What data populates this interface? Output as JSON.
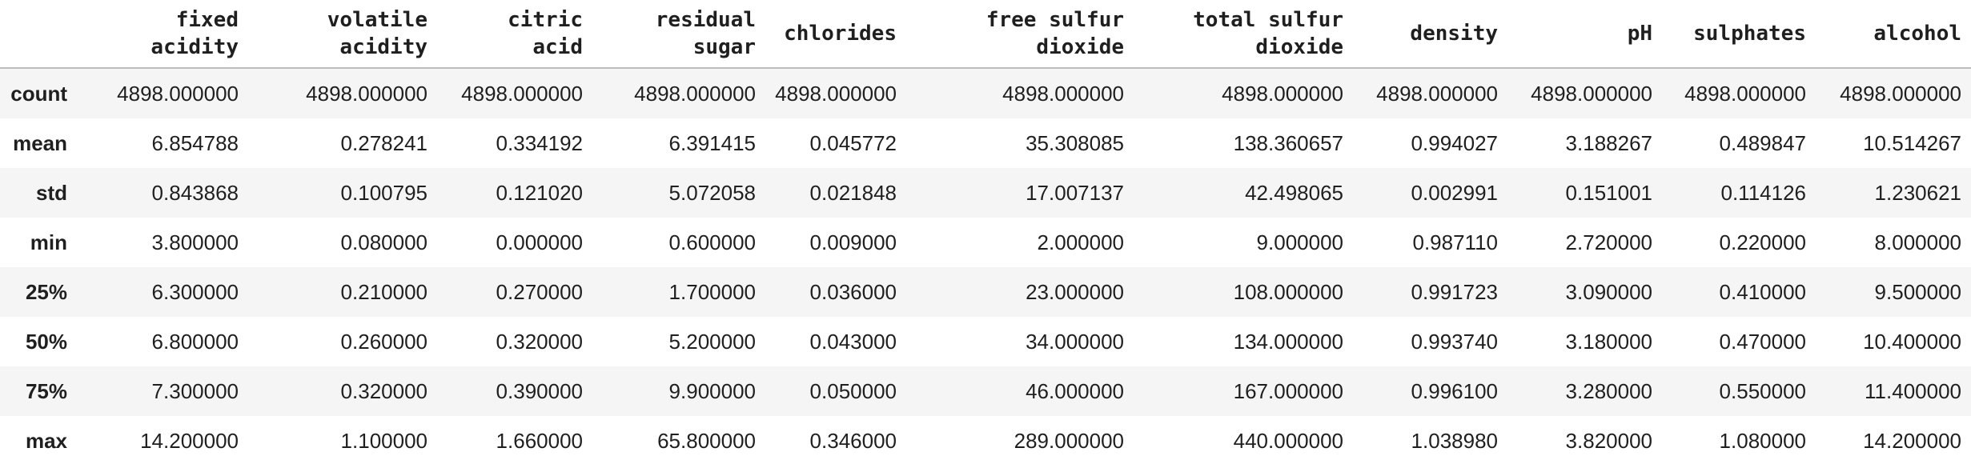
{
  "table": {
    "columns": [
      {
        "lines": [
          "fixed",
          "acidity"
        ]
      },
      {
        "lines": [
          "volatile",
          "acidity"
        ]
      },
      {
        "lines": [
          "citric",
          "acid"
        ]
      },
      {
        "lines": [
          "residual",
          "sugar"
        ]
      },
      {
        "lines": [
          "chlorides"
        ]
      },
      {
        "lines": [
          "free sulfur",
          "dioxide"
        ]
      },
      {
        "lines": [
          "total sulfur",
          "dioxide"
        ]
      },
      {
        "lines": [
          "density"
        ]
      },
      {
        "lines": [
          "pH"
        ]
      },
      {
        "lines": [
          "sulphates"
        ]
      },
      {
        "lines": [
          "alcohol"
        ]
      }
    ],
    "rows": [
      {
        "label": "count",
        "values": [
          "4898.000000",
          "4898.000000",
          "4898.000000",
          "4898.000000",
          "4898.000000",
          "4898.000000",
          "4898.000000",
          "4898.000000",
          "4898.000000",
          "4898.000000",
          "4898.000000"
        ]
      },
      {
        "label": "mean",
        "values": [
          "6.854788",
          "0.278241",
          "0.334192",
          "6.391415",
          "0.045772",
          "35.308085",
          "138.360657",
          "0.994027",
          "3.188267",
          "0.489847",
          "10.514267"
        ]
      },
      {
        "label": "std",
        "values": [
          "0.843868",
          "0.100795",
          "0.121020",
          "5.072058",
          "0.021848",
          "17.007137",
          "42.498065",
          "0.002991",
          "0.151001",
          "0.114126",
          "1.230621"
        ]
      },
      {
        "label": "min",
        "values": [
          "3.800000",
          "0.080000",
          "0.000000",
          "0.600000",
          "0.009000",
          "2.000000",
          "9.000000",
          "0.987110",
          "2.720000",
          "0.220000",
          "8.000000"
        ]
      },
      {
        "label": "25%",
        "values": [
          "6.300000",
          "0.210000",
          "0.270000",
          "1.700000",
          "0.036000",
          "23.000000",
          "108.000000",
          "0.991723",
          "3.090000",
          "0.410000",
          "9.500000"
        ]
      },
      {
        "label": "50%",
        "values": [
          "6.800000",
          "0.260000",
          "0.320000",
          "5.200000",
          "0.043000",
          "34.000000",
          "134.000000",
          "0.993740",
          "3.180000",
          "0.470000",
          "10.400000"
        ]
      },
      {
        "label": "75%",
        "values": [
          "7.300000",
          "0.320000",
          "0.390000",
          "9.900000",
          "0.050000",
          "46.000000",
          "167.000000",
          "0.996100",
          "3.280000",
          "0.550000",
          "11.400000"
        ]
      },
      {
        "label": "max",
        "values": [
          "14.200000",
          "1.100000",
          "1.660000",
          "65.800000",
          "0.346000",
          "289.000000",
          "440.000000",
          "1.038980",
          "3.820000",
          "1.080000",
          "14.200000"
        ]
      }
    ]
  },
  "colors": {
    "stripe": "#f5f5f5",
    "text": "#1f1f1f",
    "header_rule": "#bdbdbd"
  }
}
